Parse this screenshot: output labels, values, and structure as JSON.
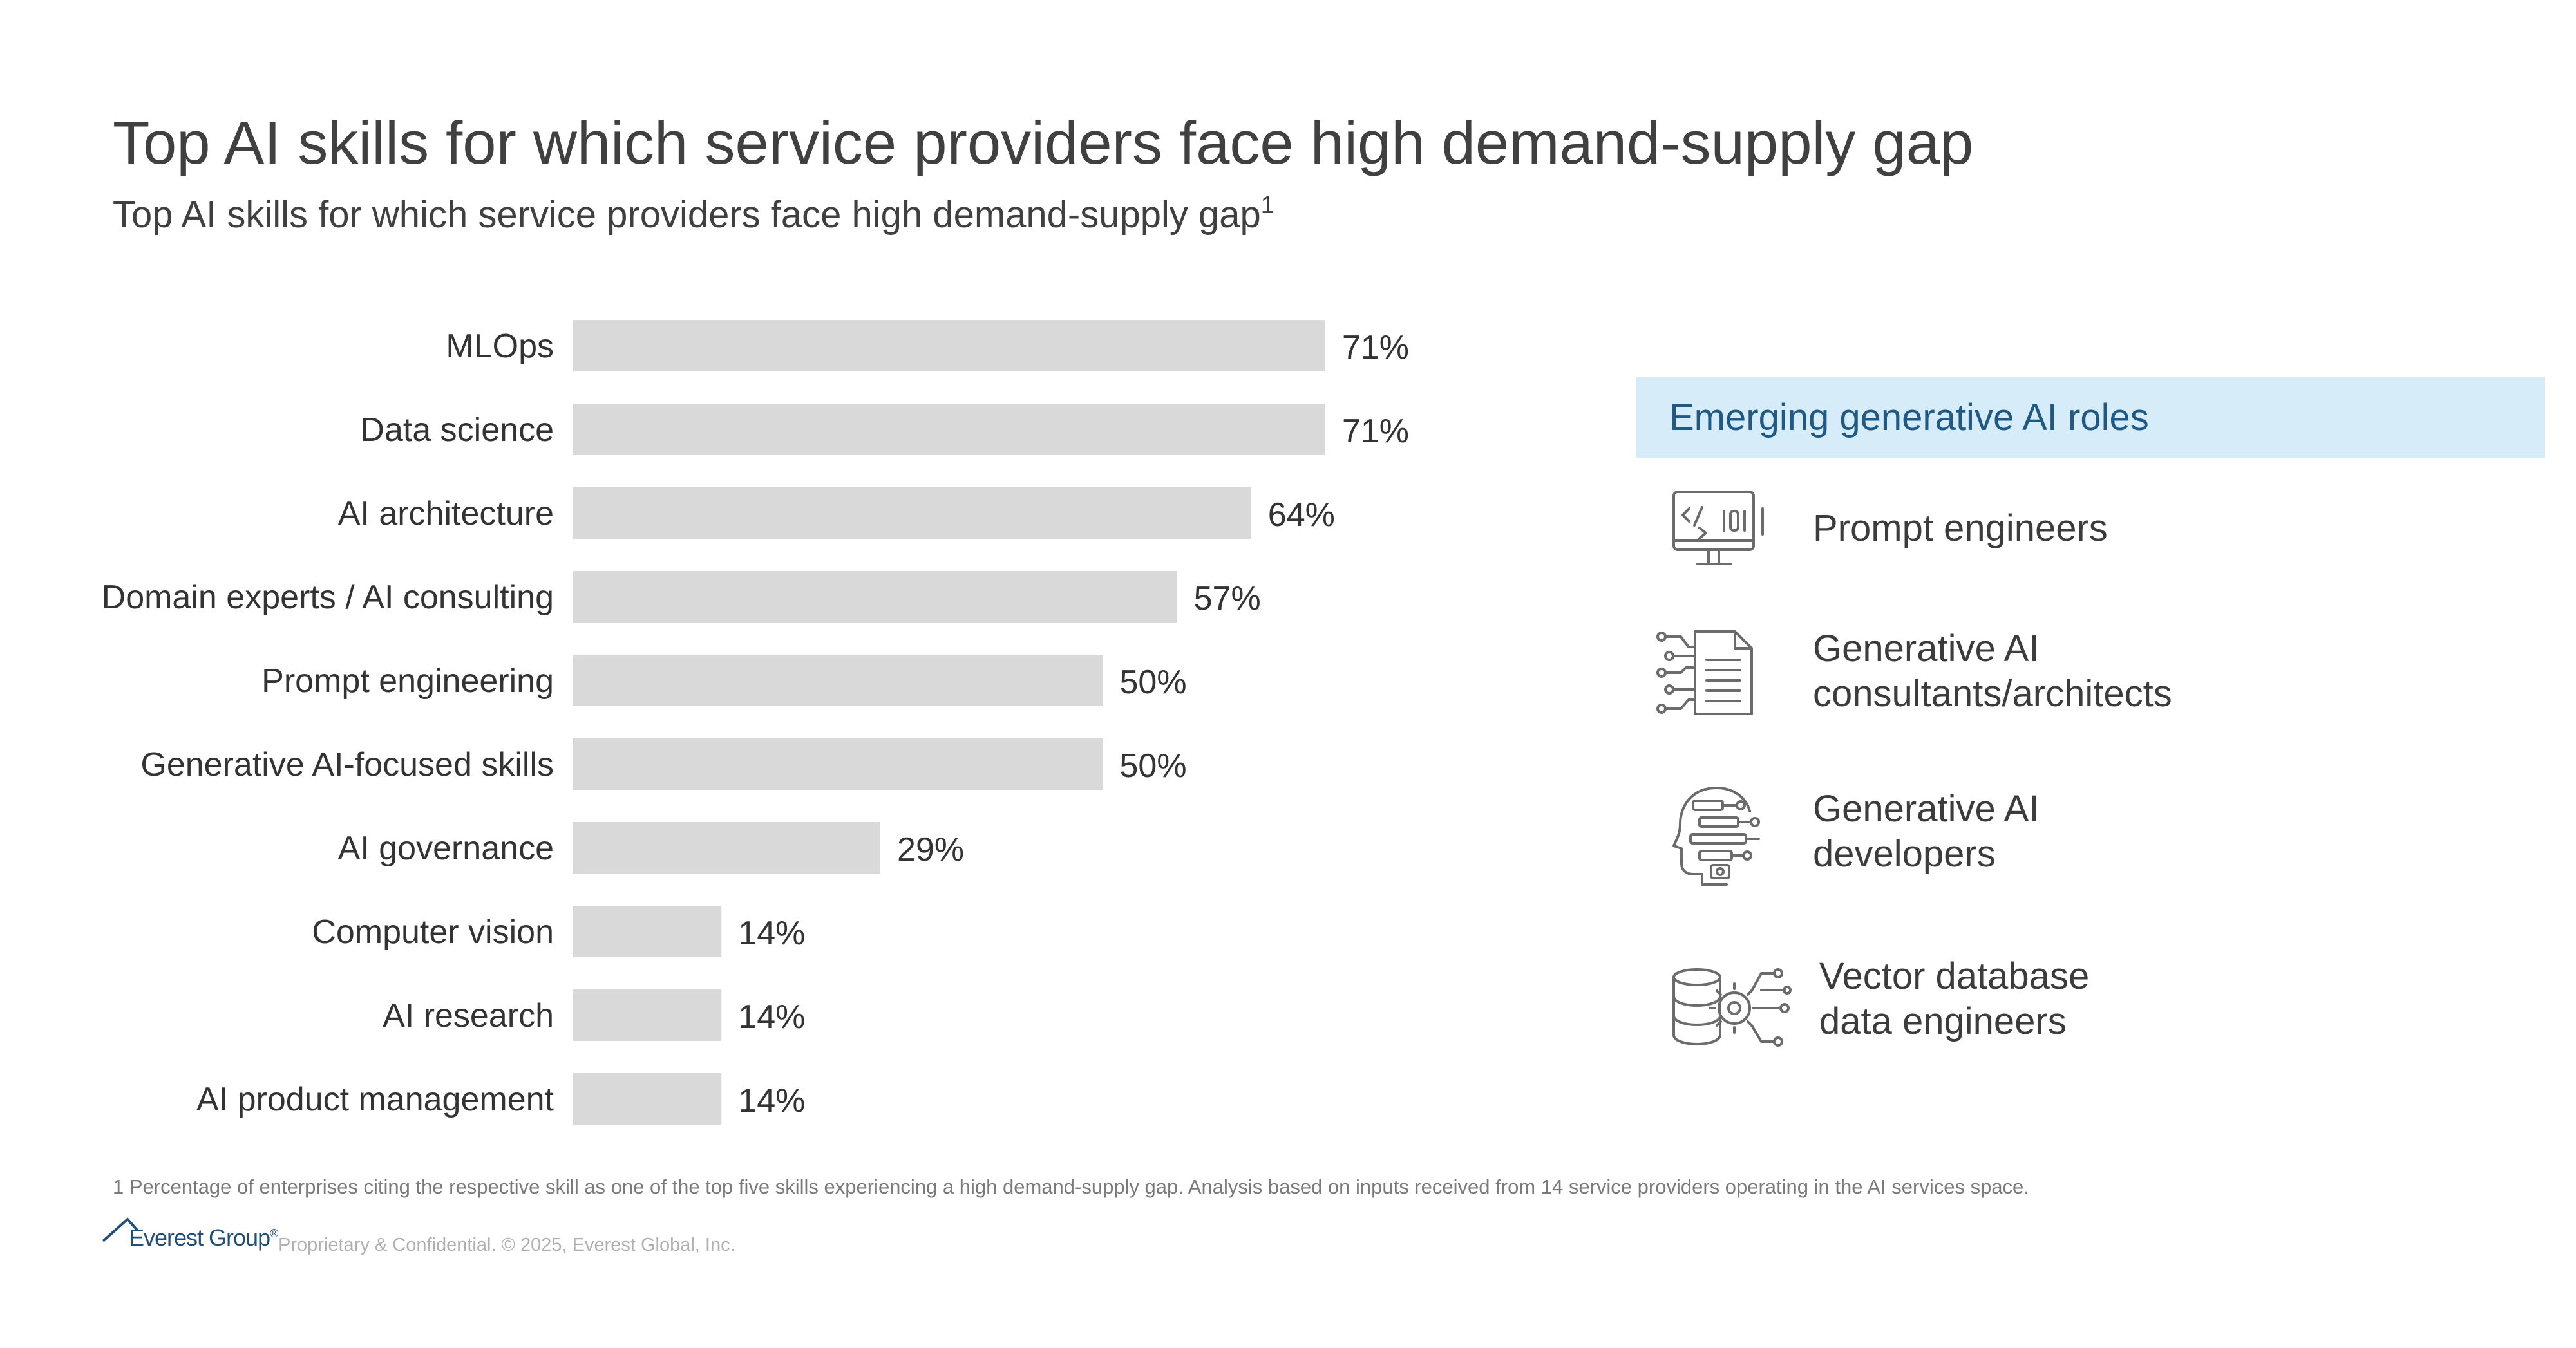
{
  "header": {
    "title": "Top AI skills for which service providers face high demand-supply gap",
    "subtitle": "Top AI skills for which service providers face high demand-supply gap",
    "subtitle_footnote_mark": "1"
  },
  "chart_data": {
    "type": "bar",
    "orientation": "horizontal",
    "title": "Top AI skills for which service providers face high demand-supply gap",
    "categories": [
      "MLOps",
      "Data science",
      "AI architecture",
      "Domain experts / AI consulting",
      "Prompt engineering",
      "Generative AI-focused skills",
      "AI governance",
      "Computer vision",
      "AI research",
      "AI product management"
    ],
    "values": [
      71,
      71,
      64,
      57,
      50,
      50,
      29,
      14,
      14,
      14
    ],
    "value_labels": [
      "71%",
      "71%",
      "64%",
      "57%",
      "50%",
      "50%",
      "29%",
      "14%",
      "14%",
      "14%"
    ],
    "unit": "%",
    "xlim": [
      0,
      100
    ],
    "xlabel": "",
    "ylabel": "",
    "grid": false,
    "bar_color": "#d9d9d9"
  },
  "roles_panel": {
    "heading": "Emerging generative AI roles",
    "heading_bg": "#d6ecf8",
    "heading_color": "#1f5a87",
    "roles": [
      {
        "icon": "code-monitor-icon",
        "lines": [
          "Prompt engineers"
        ]
      },
      {
        "icon": "document-circuit-icon",
        "lines": [
          "Generative AI",
          "consultants/architects"
        ]
      },
      {
        "icon": "ai-head-icon",
        "lines": [
          "Generative AI",
          "developers"
        ]
      },
      {
        "icon": "database-gear-icon",
        "lines": [
          "Vector database",
          "data engineers"
        ]
      }
    ]
  },
  "footer": {
    "footnote": "1 Percentage of enterprises citing the respective skill as one of the top five skills experiencing a high demand-supply gap. Analysis based on inputs received from 14 service providers operating in the AI services space.",
    "logo_text": "Everest Group",
    "logo_mark": "®",
    "copyright": "Proprietary & Confidential. © 2025, Everest Global, Inc."
  }
}
